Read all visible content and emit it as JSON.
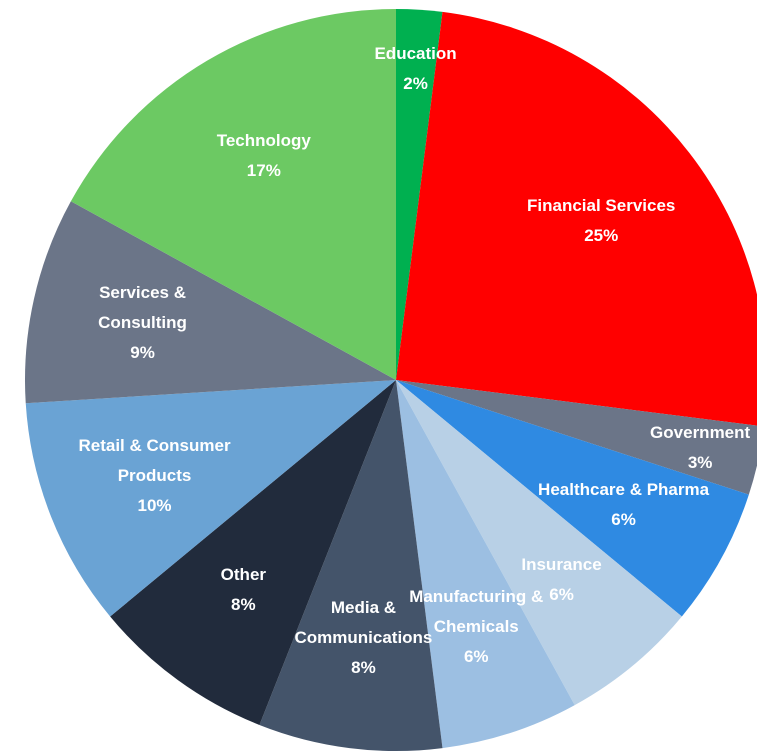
{
  "chart_data": {
    "type": "pie",
    "categories": [
      "Education",
      "Financial Services",
      "Government",
      "Healthcare & Pharma",
      "Insurance",
      "Manufacturing & Chemicals",
      "Media & Communications",
      "Other",
      "Retail & Consumer Products",
      "Services & Consulting",
      "Technology"
    ],
    "values": [
      2,
      25,
      3,
      6,
      6,
      6,
      8,
      8,
      10,
      9,
      17
    ],
    "value_labels": [
      "2%",
      "25%",
      "3%",
      "6%",
      "6%",
      "6%",
      "8%",
      "8%",
      "10%",
      "9%",
      "17%"
    ],
    "colors": [
      "#00b050",
      "#ff0000",
      "#6b7588",
      "#2f8ae2",
      "#b8d0e6",
      "#9cbfe2",
      "#44546a",
      "#212b3c",
      "#6aa3d4",
      "#6b7588",
      "#6cc963"
    ]
  }
}
